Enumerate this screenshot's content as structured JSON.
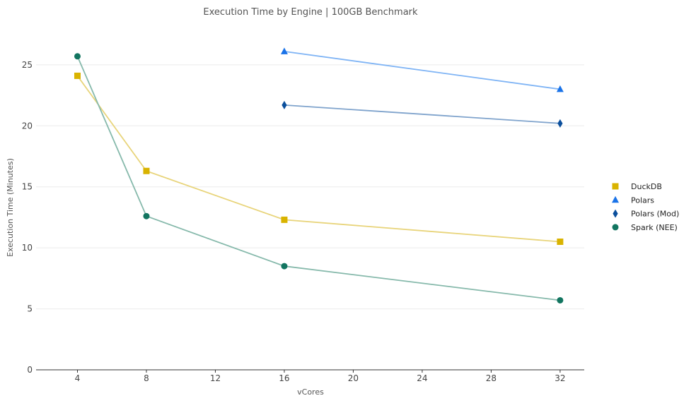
{
  "chart_data": {
    "type": "line",
    "title": "Execution Time by Engine | 100GB Benchmark",
    "xlabel": "vCores",
    "ylabel": "Execution Time (Minutes)",
    "xlim": [
      1.6,
      33.4
    ],
    "ylim": [
      0,
      28
    ],
    "xticks": [
      4,
      8,
      12,
      16,
      20,
      24,
      28,
      32
    ],
    "yticks": [
      0,
      5,
      10,
      15,
      20,
      25
    ],
    "grid": "horizontal",
    "legend_position": "right",
    "series": [
      {
        "name": "DuckDB",
        "marker": "square",
        "color": "#d9b300",
        "line_color": "#e8d47a",
        "points": [
          {
            "x": 4,
            "y": 24.1
          },
          {
            "x": 8,
            "y": 16.3
          },
          {
            "x": 16,
            "y": 12.3
          },
          {
            "x": 32,
            "y": 10.5
          }
        ]
      },
      {
        "name": "Polars",
        "marker": "triangle",
        "color": "#1a73e8",
        "line_color": "#7fb4f5",
        "points": [
          {
            "x": 16,
            "y": 26.1
          },
          {
            "x": 32,
            "y": 23.0
          }
        ]
      },
      {
        "name": "Polars (Mod)",
        "marker": "diamond",
        "color": "#0b4f9c",
        "line_color": "#7fa3cc",
        "points": [
          {
            "x": 16,
            "y": 21.7
          },
          {
            "x": 32,
            "y": 20.2
          }
        ]
      },
      {
        "name": "Spark (NEE)",
        "marker": "circle",
        "color": "#127560",
        "line_color": "#86b9ab",
        "points": [
          {
            "x": 4,
            "y": 25.7
          },
          {
            "x": 8,
            "y": 12.6
          },
          {
            "x": 16,
            "y": 8.5
          },
          {
            "x": 32,
            "y": 5.7
          }
        ]
      }
    ]
  }
}
